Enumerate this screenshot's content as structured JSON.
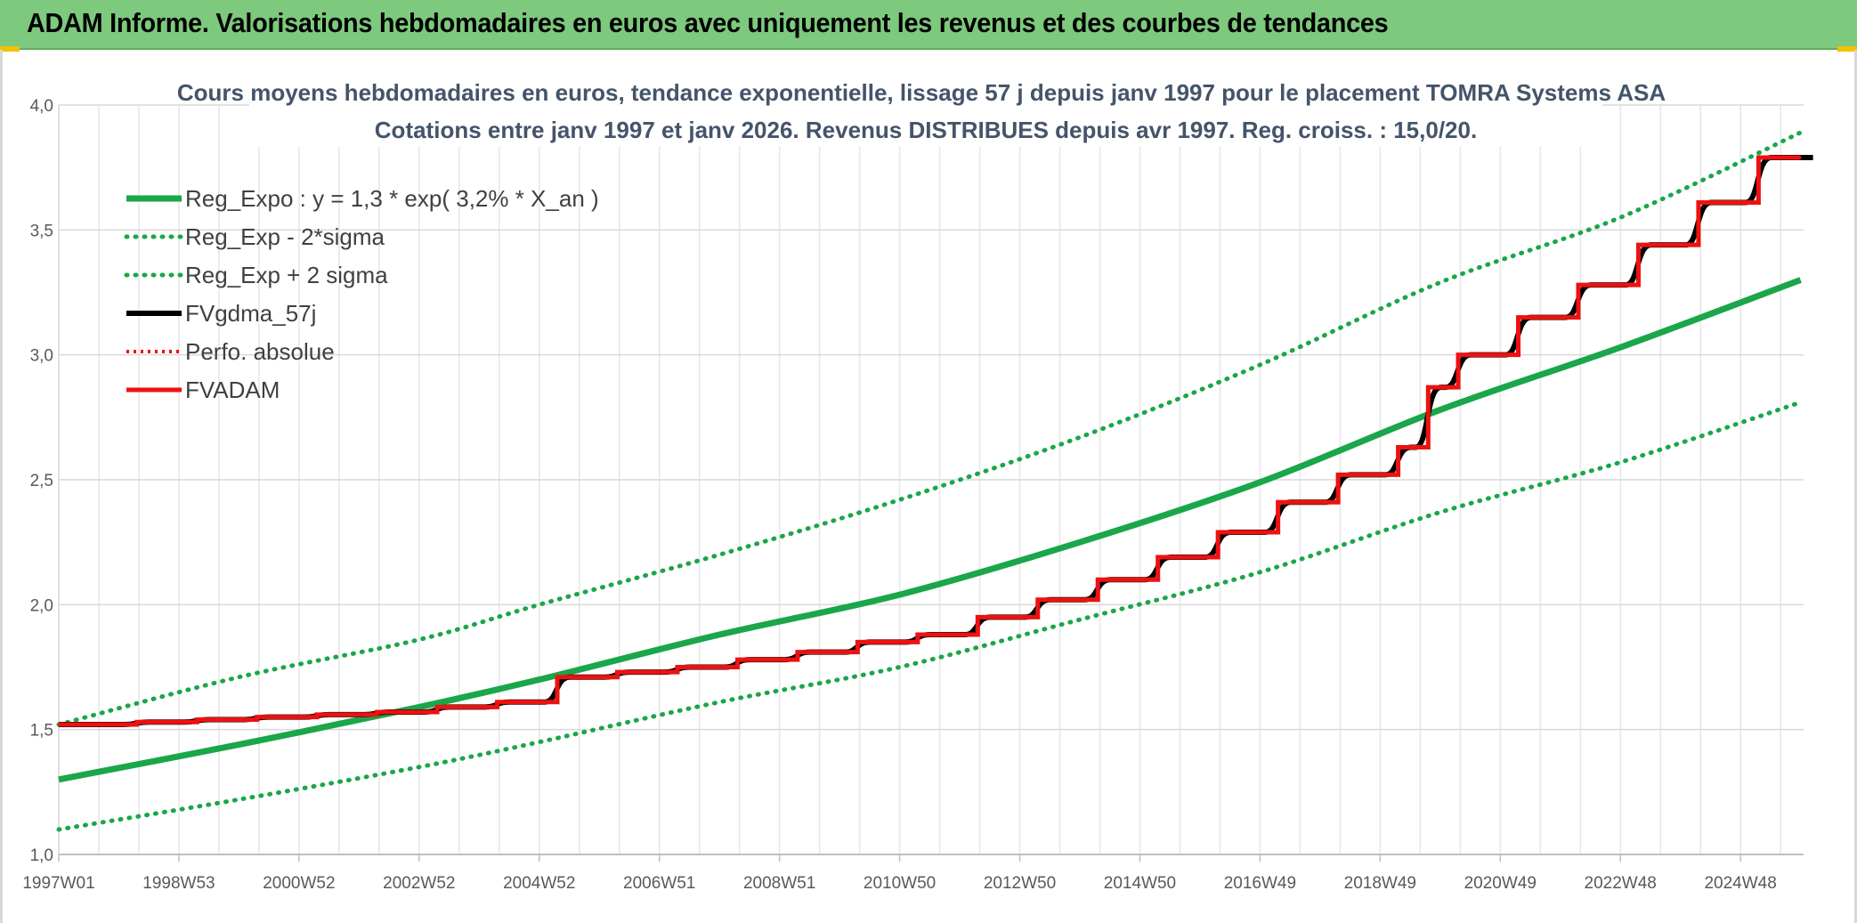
{
  "banner": {
    "title": "ADAM Informe. Valorisations hebdomadaires en euros avec uniquement les revenus et des courbes de tendances"
  },
  "colors": {
    "banner_bg": "#7dc97d",
    "reg_green": "#1aa64a",
    "fvadam_red": "#ee1111",
    "fvgdma_black": "#000000",
    "accent_yellow": "#f2c200"
  },
  "chart_data": {
    "type": "line",
    "title_line1": "Cours moyens hebdomadaires en euros, tendance exponentielle, lissage 57 j depuis janv 1997 pour le placement TOMRA Systems ASA",
    "title_line2": "Cotations entre janv 1997 et janv 2026. Revenus DISTRIBUES depuis avr 1997. Reg. croiss. : 15,0/20.",
    "xlabel": "",
    "ylabel": "",
    "ylim": [
      1.0,
      4.0
    ],
    "xlim": [
      1997.0,
      2026.05
    ],
    "y_ticks": [
      "1,0",
      "1,5",
      "2,0",
      "2,5",
      "3,0",
      "3,5",
      "4,0"
    ],
    "x_tick_labels": [
      "1997W01",
      "1998W53",
      "2000W52",
      "2002W52",
      "2004W52",
      "2006W51",
      "2008W51",
      "2010W50",
      "2012W50",
      "2014W50",
      "2016W49",
      "2018W49",
      "2020W49",
      "2022W48",
      "2024W48"
    ],
    "x_tick_years": [
      1997.0,
      1999.0,
      2001.0,
      2003.0,
      2005.0,
      2007.0,
      2009.0,
      2011.0,
      2013.0,
      2015.0,
      2017.0,
      2019.0,
      2021.0,
      2023.0,
      2025.0
    ],
    "grid": true,
    "legend_position": "top-left",
    "series": [
      {
        "name": "Reg_Expo : y = 1,3 * exp( 3,2% *  X_an )",
        "style": "solid-thick",
        "color": "#1aa64a",
        "x": [
          1997,
          2000,
          2003,
          2005,
          2008,
          2011,
          2014,
          2017,
          2020,
          2023,
          2026
        ],
        "y": [
          1.3,
          1.44,
          1.59,
          1.7,
          1.88,
          2.04,
          2.25,
          2.49,
          2.78,
          3.03,
          3.3
        ]
      },
      {
        "name": "Reg_Exp - 2*sigma",
        "style": "dotted",
        "color": "#1aa64a",
        "x": [
          1997,
          2000,
          2003,
          2005,
          2008,
          2011,
          2014,
          2017,
          2020,
          2023,
          2026
        ],
        "y": [
          1.1,
          1.22,
          1.35,
          1.45,
          1.61,
          1.75,
          1.94,
          2.13,
          2.37,
          2.57,
          2.81
        ]
      },
      {
        "name": "Reg_Exp + 2 sigma",
        "style": "dotted",
        "color": "#1aa64a",
        "x": [
          1997,
          2000,
          2003,
          2005,
          2008,
          2011,
          2014,
          2017,
          2020,
          2023,
          2026
        ],
        "y": [
          1.52,
          1.71,
          1.86,
          2.0,
          2.2,
          2.42,
          2.67,
          2.96,
          3.29,
          3.55,
          3.89
        ]
      },
      {
        "name": "FVgdma_57j",
        "style": "solid-smooth",
        "color": "#000000",
        "x": [
          1997.0,
          1998.3,
          1999.3,
          2000.3,
          2001.3,
          2002.3,
          2003.3,
          2004.3,
          2005.3,
          2006.3,
          2007.3,
          2008.3,
          2009.3,
          2010.3,
          2011.3,
          2012.3,
          2013.3,
          2014.3,
          2015.3,
          2016.3,
          2017.3,
          2018.3,
          2019.3,
          2019.8,
          2020.3,
          2021.3,
          2022.3,
          2023.3,
          2024.3,
          2025.3,
          2026.0
        ],
        "y": [
          1.52,
          1.53,
          1.54,
          1.55,
          1.56,
          1.57,
          1.59,
          1.61,
          1.71,
          1.73,
          1.75,
          1.78,
          1.81,
          1.85,
          1.88,
          1.95,
          2.02,
          2.1,
          2.19,
          2.29,
          2.41,
          2.52,
          2.63,
          2.87,
          3.0,
          3.15,
          3.28,
          3.44,
          3.61,
          3.79,
          3.79
        ]
      },
      {
        "name": "Perfo. absolue",
        "style": "dotted",
        "color": "#ee1111",
        "x": [
          1997.0,
          1998.3,
          1999.3,
          2000.3,
          2001.3,
          2002.3,
          2003.3,
          2004.3,
          2005.3,
          2006.3,
          2007.3,
          2008.3,
          2009.3,
          2010.3,
          2011.3,
          2012.3,
          2013.3,
          2014.3,
          2015.3,
          2016.3,
          2017.3,
          2018.3,
          2019.3,
          2019.8,
          2020.3,
          2021.3,
          2022.3,
          2023.3,
          2024.3,
          2025.3,
          2026.0
        ],
        "y": [
          1.52,
          1.53,
          1.54,
          1.55,
          1.56,
          1.57,
          1.59,
          1.61,
          1.71,
          1.73,
          1.75,
          1.78,
          1.81,
          1.85,
          1.88,
          1.95,
          2.02,
          2.1,
          2.19,
          2.29,
          2.41,
          2.52,
          2.63,
          2.87,
          3.0,
          3.15,
          3.28,
          3.44,
          3.61,
          3.79,
          3.79
        ]
      },
      {
        "name": "FVADAM",
        "style": "step-thick",
        "color": "#ee1111",
        "x": [
          1997.0,
          1998.3,
          1999.3,
          2000.3,
          2001.3,
          2002.3,
          2003.3,
          2004.3,
          2005.3,
          2006.3,
          2007.3,
          2008.3,
          2009.3,
          2010.3,
          2011.3,
          2012.3,
          2013.3,
          2014.3,
          2015.3,
          2016.3,
          2017.3,
          2018.3,
          2019.3,
          2019.8,
          2020.3,
          2021.3,
          2022.3,
          2023.3,
          2024.3,
          2025.3,
          2026.0
        ],
        "y": [
          1.52,
          1.53,
          1.54,
          1.55,
          1.56,
          1.57,
          1.59,
          1.61,
          1.71,
          1.73,
          1.75,
          1.78,
          1.81,
          1.85,
          1.88,
          1.95,
          2.02,
          2.1,
          2.19,
          2.29,
          2.41,
          2.52,
          2.63,
          2.87,
          3.0,
          3.15,
          3.28,
          3.44,
          3.61,
          3.79,
          3.79
        ]
      }
    ]
  }
}
